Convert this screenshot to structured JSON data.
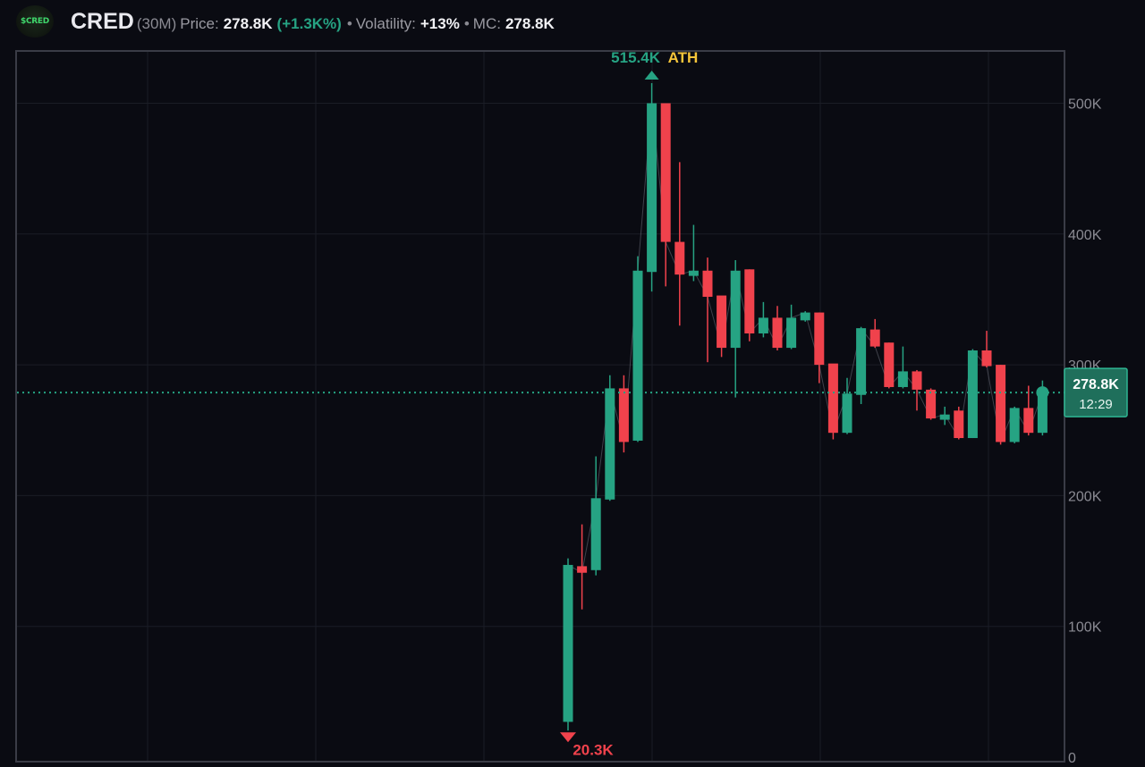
{
  "header": {
    "logo_text": "$CRED",
    "ticker": "CRED",
    "timeframe": "(30M)",
    "price_label": "Price:",
    "price_value": "278.8K",
    "price_change": "(+1.3K%)",
    "sep": "•",
    "volatility_label": "Volatility:",
    "volatility_value": "+13%",
    "mc_label": "MC:",
    "mc_value": "278.8K"
  },
  "colors": {
    "up": "#26a383",
    "down": "#f0424c",
    "ath": "#f5c53a",
    "background": "#0a0b12",
    "grid": "#1b1d26",
    "axis_text": "#8b8b93"
  },
  "chart_data": {
    "type": "candlestick",
    "ylim": [
      0,
      540000
    ],
    "y_ticks": [
      {
        "value": 0,
        "label": "0"
      },
      {
        "value": 100000,
        "label": "100K"
      },
      {
        "value": 200000,
        "label": "200K"
      },
      {
        "value": 300000,
        "label": "300K"
      },
      {
        "value": 400000,
        "label": "400K"
      },
      {
        "value": 500000,
        "label": "500K"
      }
    ],
    "grid": true,
    "candles": [
      {
        "o": 27000,
        "h": 152000,
        "l": 20300,
        "c": 147000
      },
      {
        "o": 146000,
        "h": 178000,
        "l": 113000,
        "c": 141000
      },
      {
        "o": 143000,
        "h": 230000,
        "l": 139000,
        "c": 198000
      },
      {
        "o": 197000,
        "h": 292000,
        "l": 196000,
        "c": 282000
      },
      {
        "o": 282000,
        "h": 292000,
        "l": 233000,
        "c": 241000
      },
      {
        "o": 242000,
        "h": 383000,
        "l": 241000,
        "c": 372000
      },
      {
        "o": 371000,
        "h": 515400,
        "l": 356000,
        "c": 500000
      },
      {
        "o": 500000,
        "h": 500000,
        "l": 360000,
        "c": 394000
      },
      {
        "o": 394000,
        "h": 455000,
        "l": 330000,
        "c": 369000
      },
      {
        "o": 368000,
        "h": 407000,
        "l": 364000,
        "c": 372000
      },
      {
        "o": 372000,
        "h": 382000,
        "l": 302000,
        "c": 352000
      },
      {
        "o": 353000,
        "h": 352000,
        "l": 306000,
        "c": 313000
      },
      {
        "o": 313000,
        "h": 380000,
        "l": 275000,
        "c": 372000
      },
      {
        "o": 373000,
        "h": 373000,
        "l": 318000,
        "c": 324000
      },
      {
        "o": 324000,
        "h": 348000,
        "l": 321000,
        "c": 336000
      },
      {
        "o": 336000,
        "h": 345000,
        "l": 311000,
        "c": 313000
      },
      {
        "o": 313000,
        "h": 346000,
        "l": 312000,
        "c": 336000
      },
      {
        "o": 334000,
        "h": 341000,
        "l": 333000,
        "c": 340000
      },
      {
        "o": 340000,
        "h": 340000,
        "l": 286000,
        "c": 300000
      },
      {
        "o": 301000,
        "h": 300000,
        "l": 243000,
        "c": 248000
      },
      {
        "o": 248000,
        "h": 290000,
        "l": 247000,
        "c": 278000
      },
      {
        "o": 277000,
        "h": 329000,
        "l": 270000,
        "c": 328000
      },
      {
        "o": 327000,
        "h": 335000,
        "l": 313000,
        "c": 314000
      },
      {
        "o": 317000,
        "h": 317000,
        "l": 282000,
        "c": 283000
      },
      {
        "o": 283000,
        "h": 314000,
        "l": 282000,
        "c": 295000
      },
      {
        "o": 295000,
        "h": 296000,
        "l": 265000,
        "c": 281000
      },
      {
        "o": 281000,
        "h": 282000,
        "l": 258000,
        "c": 259000
      },
      {
        "o": 258000,
        "h": 268000,
        "l": 254000,
        "c": 262000
      },
      {
        "o": 265000,
        "h": 268000,
        "l": 243000,
        "c": 244000
      },
      {
        "o": 244000,
        "h": 312000,
        "l": 244000,
        "c": 311000
      },
      {
        "o": 311000,
        "h": 326000,
        "l": 298000,
        "c": 299000
      },
      {
        "o": 300000,
        "h": 300000,
        "l": 239000,
        "c": 241000
      },
      {
        "o": 241000,
        "h": 268000,
        "l": 240000,
        "c": 267000
      },
      {
        "o": 267000,
        "h": 284000,
        "l": 246000,
        "c": 248000
      },
      {
        "o": 248000,
        "h": 288000,
        "l": 246000,
        "c": 278800
      }
    ],
    "current_price": 278800,
    "current_price_label": "278.8K",
    "countdown_label": "12:29",
    "ath": {
      "value": 515400,
      "label": "515.4K",
      "tag": "ATH"
    },
    "low": {
      "value": 20300,
      "label": "20.3K"
    }
  }
}
